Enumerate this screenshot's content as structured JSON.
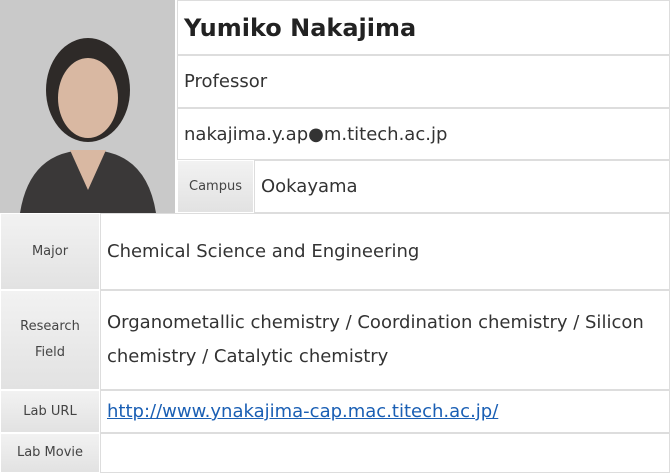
{
  "profile": {
    "name": "Yumiko Nakajima",
    "position": "Professor",
    "email": "nakajima.y.ap●m.titech.ac.jp",
    "campus": {
      "label": "Campus",
      "value": "Ookayama"
    }
  },
  "details": [
    {
      "label": "Major",
      "value": "Chemical Science and Engineering"
    },
    {
      "label": "Research Field",
      "value": "Organometallic chemistry / Coordination chemistry / Silicon chemistry / Catalytic chemistry"
    },
    {
      "label": "Lab URL",
      "value": "http://www.ynakajima-cap.mac.titech.ac.jp/"
    },
    {
      "label": "Lab Movie"
    }
  ]
}
